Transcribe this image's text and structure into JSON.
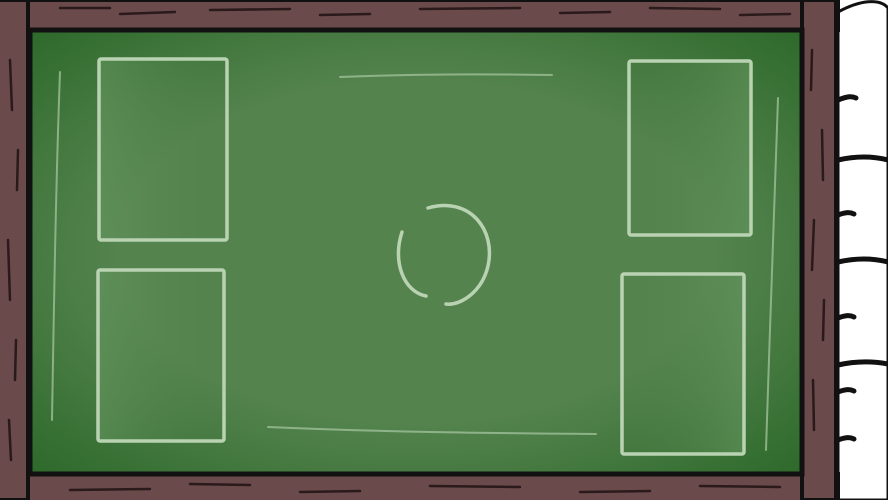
{
  "scene": {
    "kind": "chalkboard-game-board",
    "colors": {
      "frame_wood": "#6b4a4b",
      "frame_wood_dark": "#4e3435",
      "frame_outline": "#111111",
      "board_green": "#54834e",
      "board_green_dark": "#2e6a2b",
      "chalk": "#b9d3b2",
      "paper": "#ffffff"
    },
    "zones": {
      "left_top": "card-slot",
      "left_bottom": "card-slot",
      "right_top": "card-slot",
      "right_bottom": "card-slot",
      "center": "circle-slot"
    }
  }
}
